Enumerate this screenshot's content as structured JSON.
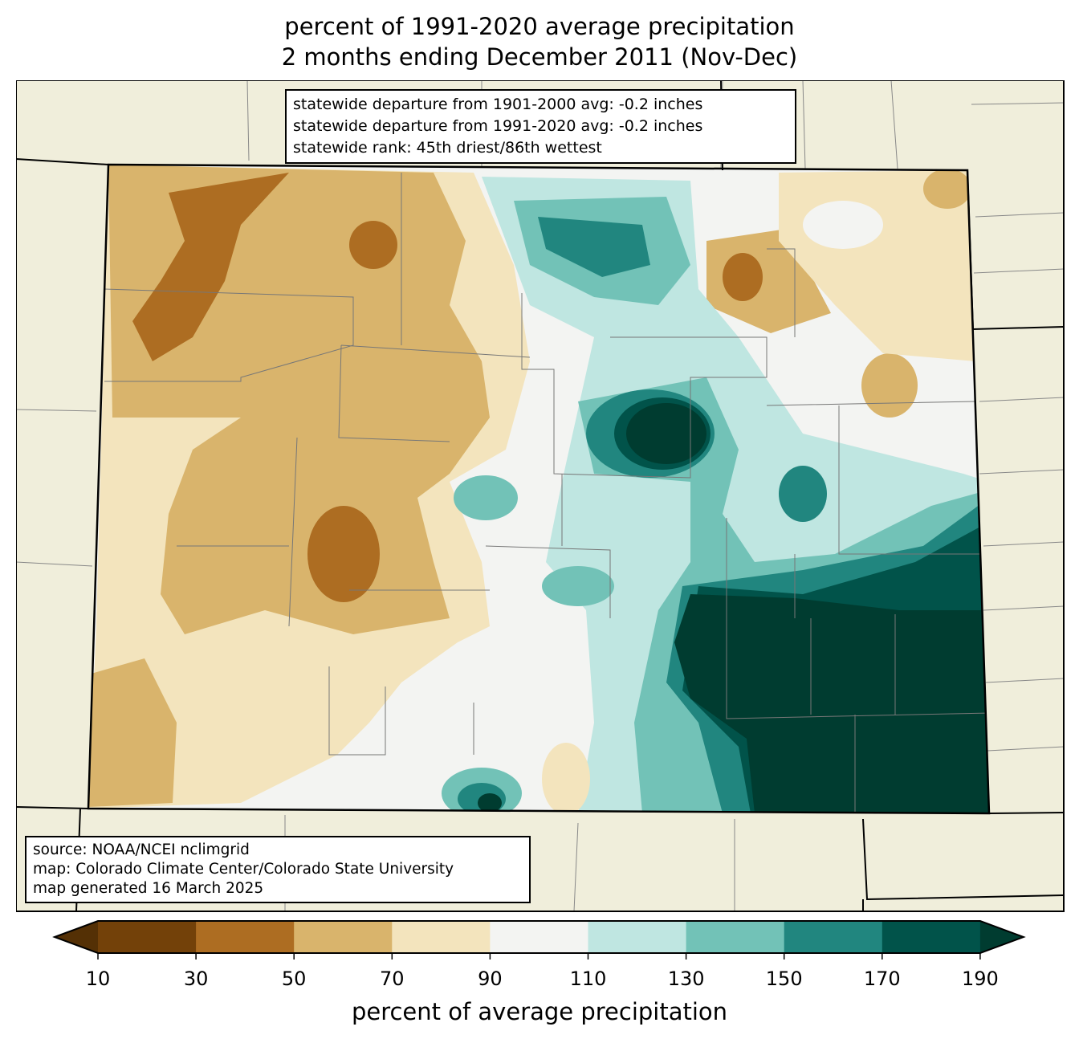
{
  "title": {
    "line1": "percent of 1991-2020 average precipitation",
    "line2": "2 months ending December 2011 (Nov-Dec)"
  },
  "stats": {
    "line1": "statewide departure from 1901-2000 avg: -0.2 inches",
    "line2": "statewide departure from 1991-2020 avg: -0.2 inches",
    "line3": "statewide rank: 45th driest/86th wettest"
  },
  "source": {
    "line1": "source: NOAA/NCEI nclimgrid",
    "line2": "map: Colorado Climate Center/Colorado State University",
    "line3": "map generated 16 March 2025"
  },
  "colorbar": {
    "label": "percent of average precipitation",
    "ticks": [
      "10",
      "30",
      "50",
      "70",
      "90",
      "110",
      "130",
      "150",
      "170",
      "190"
    ],
    "colors": [
      "#734109",
      "#ad6d22",
      "#d9b46c",
      "#f3e4bd",
      "#f3f4f2",
      "#bfe6e1",
      "#72c2b7",
      "#21867f",
      "#01534a"
    ],
    "under_color": "#543005",
    "over_color": "#003c30"
  },
  "map": {
    "land_color": "#f0eedb",
    "region": "Colorado"
  }
}
